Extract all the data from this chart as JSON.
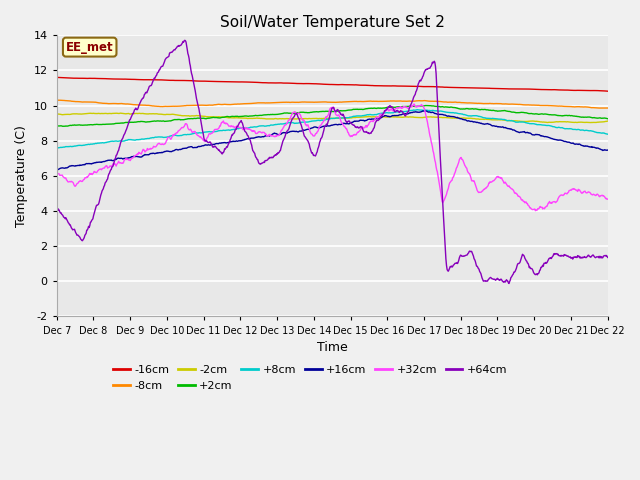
{
  "title": "Soil/Water Temperature Set 2",
  "xlabel": "Time",
  "ylabel": "Temperature (C)",
  "ylim": [
    -2,
    14
  ],
  "fig_bg": "#f0f0f0",
  "ax_bg": "#e8e8e8",
  "annotation_label": "EE_met",
  "annotation_bg": "#ffffcc",
  "annotation_border": "#8b6914",
  "annotation_text_color": "#8b0000",
  "series": [
    {
      "label": "-16cm",
      "color": "#dd0000"
    },
    {
      "label": "-8cm",
      "color": "#ff8800"
    },
    {
      "label": "-2cm",
      "color": "#cccc00"
    },
    {
      "label": "+2cm",
      "color": "#00bb00"
    },
    {
      "label": "+8cm",
      "color": "#00cccc"
    },
    {
      "label": "+16cm",
      "color": "#000099"
    },
    {
      "label": "+32cm",
      "color": "#ff44ff"
    },
    {
      "label": "+64cm",
      "color": "#8800bb"
    }
  ],
  "xtick_labels": [
    "Dec 7",
    "Dec 8",
    "Dec 9",
    "Dec 10",
    "Dec 11",
    "Dec 12",
    "Dec 13",
    "Dec 14",
    "Dec 15",
    "Dec 16",
    "Dec 17",
    "Dec 18",
    "Dec 19",
    "Dec 20",
    "Dec 21",
    "Dec 22"
  ],
  "ytick_values": [
    -2,
    0,
    2,
    4,
    6,
    8,
    10,
    12,
    14
  ],
  "n_days": 15,
  "n_points": 900
}
